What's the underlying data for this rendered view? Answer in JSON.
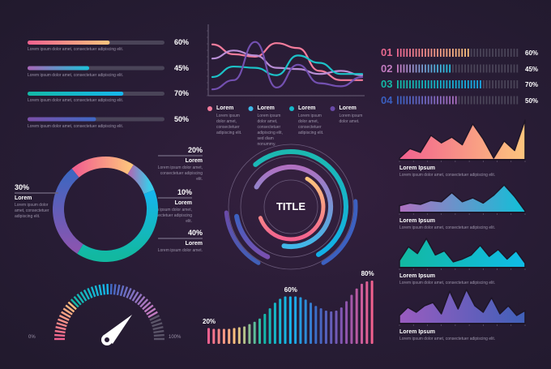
{
  "chart_data": [
    {
      "type": "bar",
      "variant": "horizontal-progress",
      "items": [
        {
          "value": 60,
          "label": "60%",
          "desc": "Lorem ipsum dolor amet, consectetuer adipiscing elit.",
          "colors": [
            "#f2618f",
            "#fdc57d"
          ]
        },
        {
          "value": 45,
          "label": "45%",
          "desc": "Lorem ipsum dolor amet, consectetuer adipiscing elit.",
          "colors": [
            "#a866b8",
            "#1cc2d8"
          ]
        },
        {
          "value": 70,
          "label": "70%",
          "desc": "Lorem ipsum dolor amet, consectetuer adipiscing elit.",
          "colors": [
            "#14b8a6",
            "#16b6ee"
          ]
        },
        {
          "value": 50,
          "label": "50%",
          "desc": "Lorem ipsum dolor amet, consectetuer adipiscing elit.",
          "colors": [
            "#7b4fa8",
            "#3f68c4"
          ]
        }
      ]
    },
    {
      "type": "line",
      "grid": false,
      "series": [
        {
          "color": "#f47c9c",
          "values": [
            78,
            62,
            58,
            80,
            72,
            35,
            20,
            20
          ]
        },
        {
          "color": "#b98ed6",
          "values": [
            55,
            68,
            60,
            40,
            38,
            30,
            35,
            28
          ]
        },
        {
          "color": "#1cc2c8",
          "values": [
            25,
            42,
            40,
            28,
            60,
            48,
            30,
            30
          ]
        },
        {
          "color": "#7350b0",
          "values": [
            5,
            20,
            82,
            8,
            45,
            15,
            10,
            25
          ]
        }
      ],
      "legend": [
        {
          "label": "Lorem",
          "desc": "Lorem ipsum dolor amet, consectetuer adipiscing elit.",
          "color": "#f47c9c"
        },
        {
          "label": "Lorem",
          "desc": "Lorem ipsum dolor amet, consectetuer adipiscing elit, sed diam nonummy.",
          "color": "#3fb8e8"
        },
        {
          "label": "Lorem",
          "desc": "Lorem ipsum dolor amet, consectetuer adipiscing elit.",
          "color": "#16b6c8"
        },
        {
          "label": "Lorem",
          "desc": "Lorem ipsum dolor amet.",
          "color": "#6a4aa8"
        }
      ],
      "legend_position": "bottom"
    },
    {
      "type": "bar",
      "variant": "segmented-progress",
      "items": [
        {
          "index": "01",
          "value": 60,
          "label": "60%",
          "colors": [
            "#e8688f",
            "#f8c27c"
          ]
        },
        {
          "index": "02",
          "value": 45,
          "label": "45%",
          "colors": [
            "#c27bc0",
            "#1cc2e0"
          ]
        },
        {
          "index": "03",
          "value": 70,
          "label": "70%",
          "colors": [
            "#14b8a6",
            "#1aa8e8"
          ]
        },
        {
          "index": "04",
          "value": 50,
          "label": "50%",
          "colors": [
            "#3a5fc0",
            "#b070c0"
          ]
        }
      ]
    },
    {
      "type": "pie",
      "variant": "donut",
      "slices": [
        {
          "value": 20,
          "label": "20%",
          "title": "Lorem",
          "desc": "Lorem ipsum dolor amet, consectetuer adipiscing elit.",
          "colors": [
            "#f2618f",
            "#fdc57d"
          ]
        },
        {
          "value": 10,
          "label": "10%",
          "title": "Lorem",
          "desc": "Lorem ipsum dolor amet, consectetuer adipiscing elit.",
          "colors": [
            "#a66fb8",
            "#3ccbe8"
          ]
        },
        {
          "value": 40,
          "label": "40%",
          "title": "Lorem",
          "desc": "Lorem ipsum dolor amet.",
          "colors": [
            "#16b6ee",
            "#12b8a0"
          ]
        },
        {
          "value": 30,
          "label": "30%",
          "title": "Lorem",
          "desc": "Lorem ipsum dolor amet, consectetuer adipiscing elit.",
          "colors": [
            "#3d66c0",
            "#8a55b0"
          ]
        }
      ]
    },
    {
      "type": "pie",
      "variant": "radial-rings",
      "title": "TITLE"
    },
    {
      "type": "gauge",
      "value": 60,
      "min_label": "0%",
      "max_label": "100%"
    },
    {
      "type": "bar",
      "variant": "wave-columns",
      "values": [
        20,
        19,
        19,
        19,
        19,
        20,
        21,
        22,
        25,
        28,
        32,
        38,
        45,
        52,
        57,
        60,
        60,
        60,
        59,
        56,
        52,
        48,
        45,
        42,
        41,
        42,
        46,
        54,
        62,
        70,
        76,
        79,
        80
      ],
      "annotations": [
        {
          "index": 0,
          "label": "20%"
        },
        {
          "index": 16,
          "label": "60%"
        },
        {
          "index": 32,
          "label": "80%"
        }
      ]
    },
    {
      "type": "area",
      "charts": [
        {
          "title": "Lorem Ipsum",
          "desc": "Lorem ipsum dolor amet, consectetuer adipiscing elit.",
          "colors": [
            "#f2618f",
            "#fdc57d"
          ],
          "values": [
            0,
            25,
            15,
            60,
            40,
            55,
            35,
            90,
            50,
            0,
            45,
            20,
            100
          ]
        },
        {
          "title": "Lorem Ipsum",
          "desc": "Lorem ipsum dolor amet, consectetuer adipiscing elit.",
          "colors": [
            "#b070c0",
            "#10c0d8"
          ],
          "values": [
            20,
            30,
            25,
            40,
            35,
            70,
            35,
            50,
            30,
            60,
            100,
            55,
            0
          ]
        },
        {
          "title": "Lorem Ipsum",
          "desc": "Lorem ipsum dolor amet, consectetuer adipiscing elit.",
          "colors": [
            "#12b8a0",
            "#10bce8"
          ],
          "values": [
            20,
            70,
            45,
            100,
            40,
            55,
            15,
            25,
            40,
            75,
            35,
            60,
            25,
            55,
            10
          ]
        },
        {
          "title": "Lorem Ipsum",
          "desc": "Lorem ipsum dolor amet, consectetuer adipiscing elit.",
          "colors": [
            "#9a5cc0",
            "#4060b8"
          ],
          "values": [
            20,
            45,
            30,
            50,
            60,
            25,
            95,
            40,
            100,
            50,
            30,
            75,
            25,
            50,
            20,
            35
          ]
        }
      ]
    }
  ],
  "colors": {
    "background": "#281c35",
    "track": "#4a4458",
    "text_muted": "#9a92a8"
  }
}
